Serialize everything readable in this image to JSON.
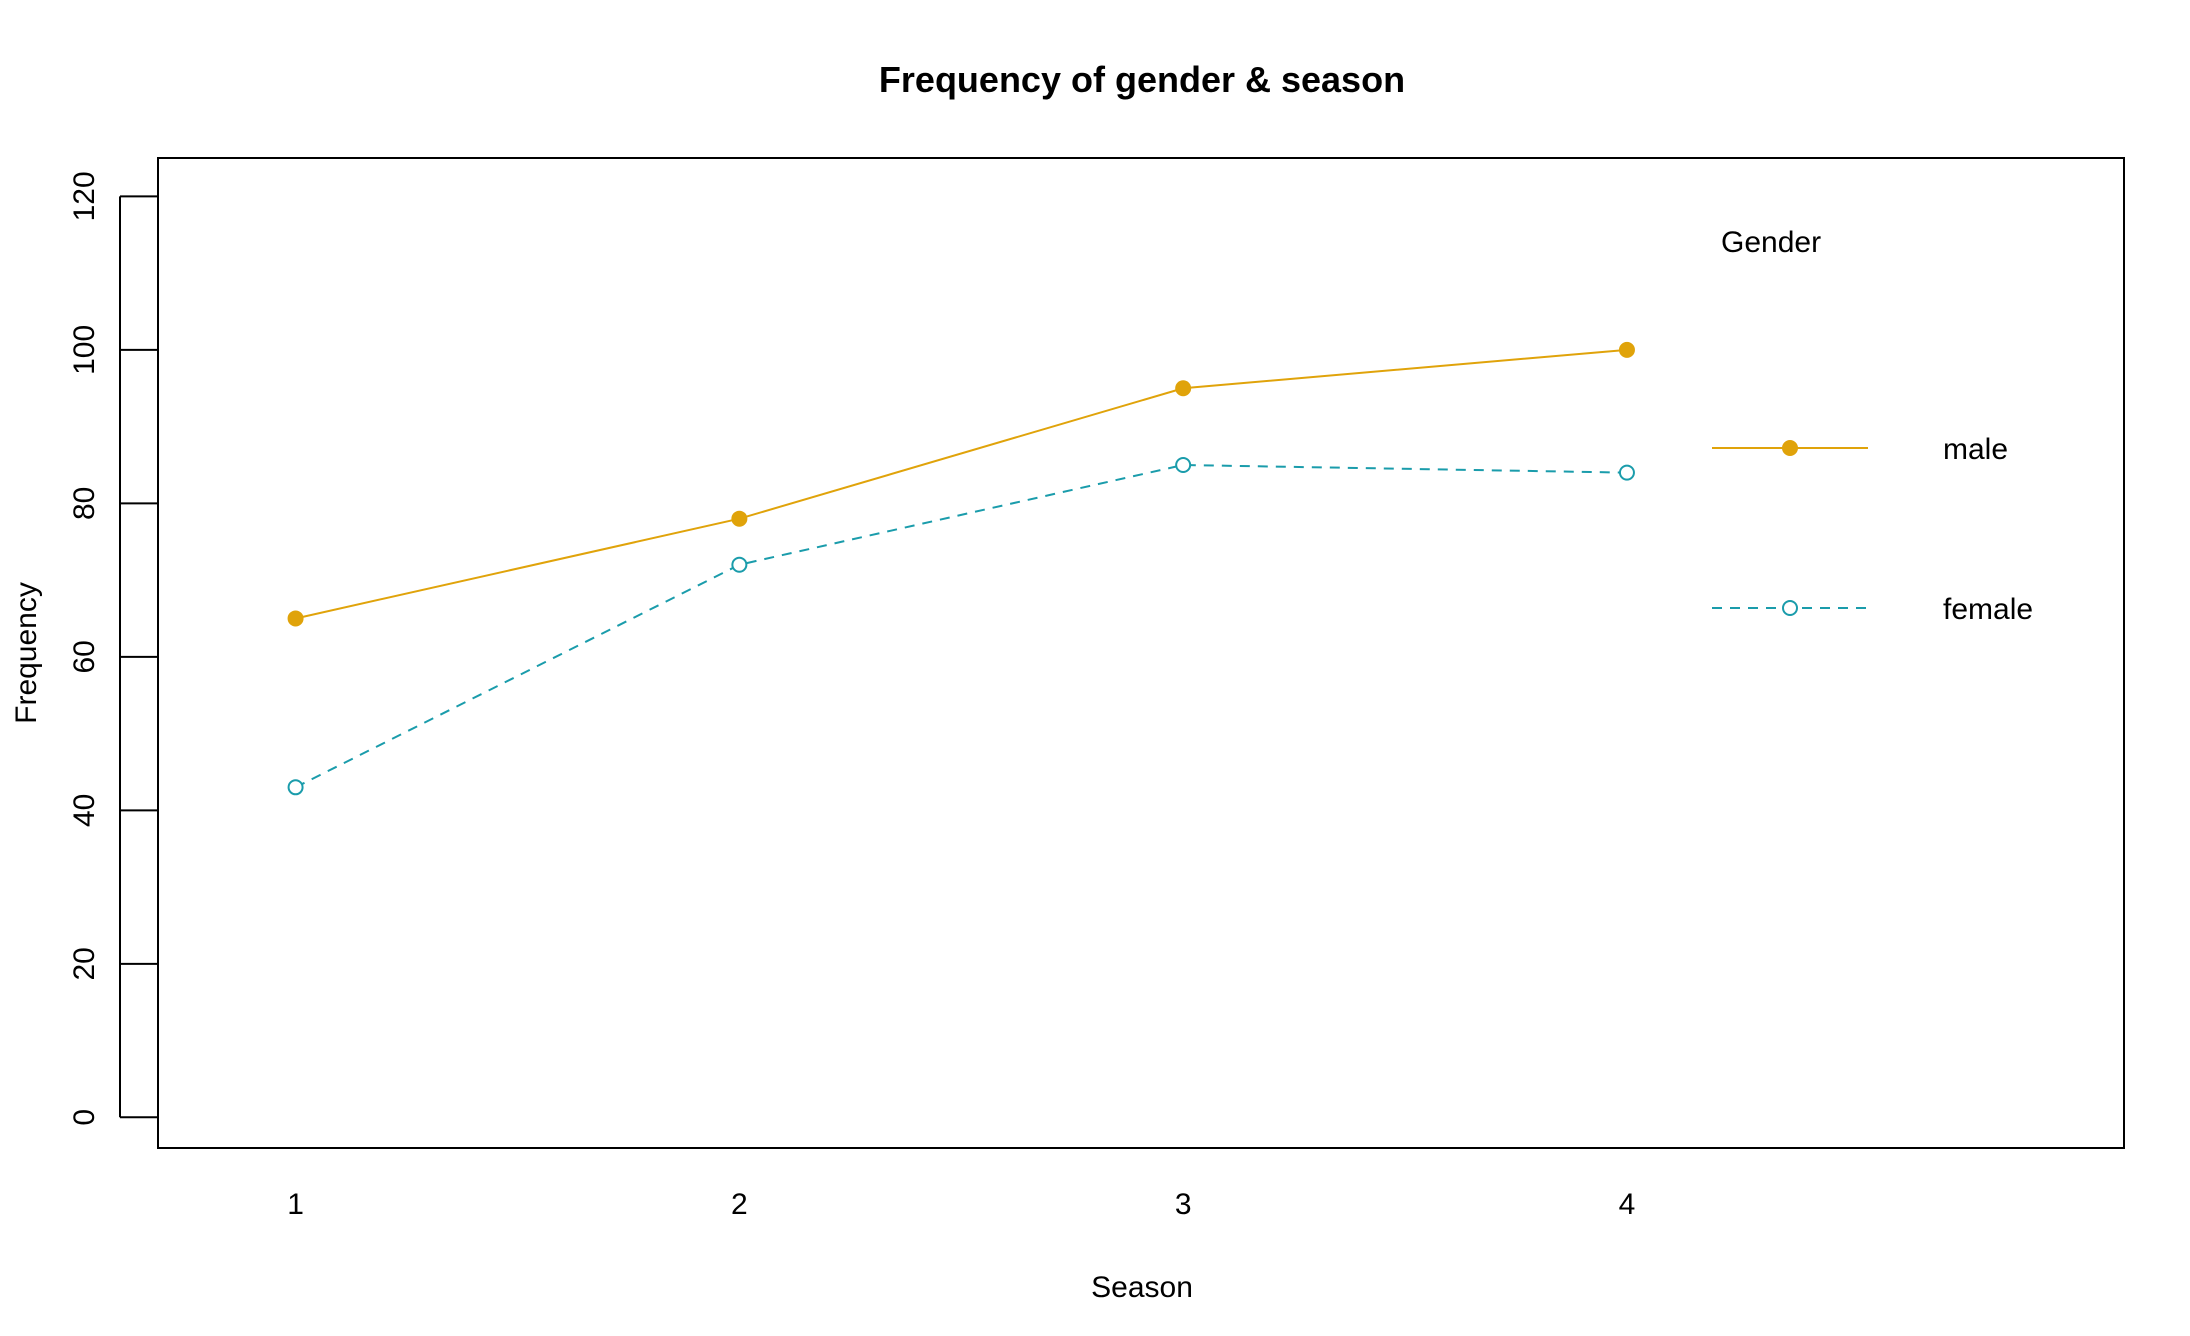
{
  "chart_data": {
    "type": "line",
    "title": "Frequency of gender & season",
    "xlabel": "Season",
    "ylabel": "Frequency",
    "x": [
      1,
      2,
      3,
      4
    ],
    "x_tick_labels": [
      "1",
      "2",
      "3",
      "4"
    ],
    "xlim": [
      0.69,
      5.12
    ],
    "ylim": [
      -4,
      125
    ],
    "y_ticks": [
      0,
      20,
      40,
      60,
      80,
      100,
      120
    ],
    "y_tick_labels": [
      "0",
      "20",
      "40",
      "60",
      "80",
      "100",
      "120"
    ],
    "grid": false,
    "legend": {
      "title": "Gender",
      "position": "top-right",
      "entries": [
        "male",
        "female"
      ]
    },
    "series": [
      {
        "name": "male",
        "values": [
          65,
          78,
          95,
          100
        ],
        "color": "#E0A30A",
        "line": "solid",
        "marker": "filled-circle"
      },
      {
        "name": "female",
        "values": [
          43,
          72,
          85,
          84
        ],
        "color": "#1A9CAB",
        "line": "dashed",
        "marker": "open-circle"
      }
    ]
  }
}
